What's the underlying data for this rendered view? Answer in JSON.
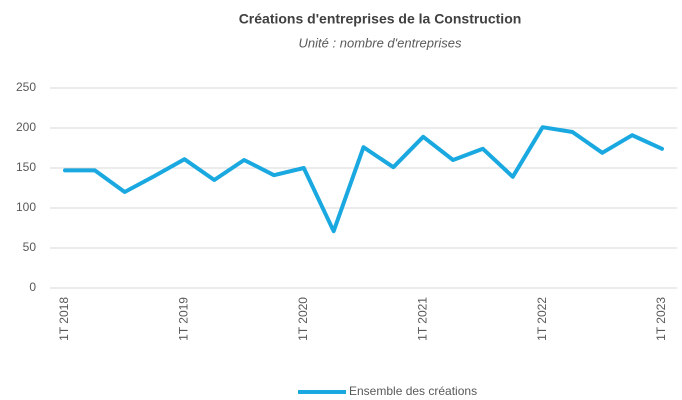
{
  "chart_data": {
    "type": "line",
    "title": "Créations d'entreprises de la Construction",
    "subtitle": "Unité : nombre d'entreprises",
    "categories": [
      "1T 2018",
      null,
      null,
      null,
      "1T 2019",
      null,
      null,
      null,
      "1T 2020",
      null,
      null,
      null,
      "1T 2021",
      null,
      null,
      null,
      "1T 2022",
      null,
      null,
      null,
      "1T 2023"
    ],
    "series": [
      {
        "name": "Ensemble des créations",
        "color": "#1aa8e0",
        "values": [
          147,
          147,
          120,
          140,
          161,
          135,
          160,
          141,
          150,
          71,
          176,
          151,
          189,
          160,
          174,
          139,
          201,
          195,
          169,
          191,
          174
        ]
      }
    ],
    "ylim": [
      0,
      250
    ],
    "yticks": [
      0,
      50,
      100,
      150,
      200,
      250
    ],
    "grid": true,
    "legend": "bottom"
  }
}
